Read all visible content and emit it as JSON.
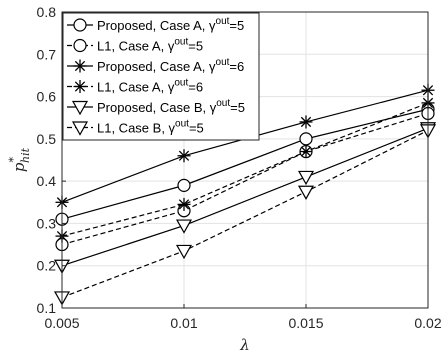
{
  "chart_data": {
    "type": "line",
    "title": "",
    "xlabel": "λ",
    "ylabel": {
      "base": "p",
      "sup": "*",
      "sub": "hit"
    },
    "x": [
      0.005,
      0.01,
      0.015,
      0.02
    ],
    "xticks": [
      "0.005",
      "0.01",
      "0.015",
      "0.02"
    ],
    "yticks": [
      "0.1",
      "0.2",
      "0.3",
      "0.4",
      "0.5",
      "0.6",
      "0.7",
      "0.8"
    ],
    "xlim": [
      0.005,
      0.02
    ],
    "ylim": [
      0.1,
      0.8
    ],
    "grid": true,
    "legend_position": "top-left",
    "series": [
      {
        "name": "Proposed, Case A, γ^out=5",
        "legend_prefix": "Proposed, Case A, γ",
        "legend_sup": "out",
        "legend_suffix": "=5",
        "marker": "circle",
        "line": "solid",
        "values": [
          0.31,
          0.39,
          0.5,
          0.57
        ]
      },
      {
        "name": "L1, Case A, γ^out=5",
        "legend_prefix": "L1, Case A, γ",
        "legend_sup": "out",
        "legend_suffix": "=5",
        "marker": "circle",
        "line": "dashed",
        "values": [
          0.25,
          0.33,
          0.47,
          0.56
        ]
      },
      {
        "name": "Proposed, Case A, γ^out=6",
        "legend_prefix": "Proposed, Case A, γ",
        "legend_sup": "out",
        "legend_suffix": "=6",
        "marker": "star",
        "line": "solid",
        "values": [
          0.35,
          0.46,
          0.54,
          0.615
        ]
      },
      {
        "name": "L1, Case A, γ^out=6",
        "legend_prefix": "L1, Case A, γ",
        "legend_sup": "out",
        "legend_suffix": "=6",
        "marker": "star",
        "line": "dashed",
        "values": [
          0.27,
          0.345,
          0.47,
          0.585
        ]
      },
      {
        "name": "Proposed, Case B, γ^out=5",
        "legend_prefix": "Proposed, Case B, γ",
        "legend_sup": "out",
        "legend_suffix": "=5",
        "marker": "triangle-down",
        "line": "solid",
        "values": [
          0.2,
          0.295,
          0.41,
          0.525
        ]
      },
      {
        "name": "L1, Case B, γ^out=5",
        "legend_prefix": "L1, Case B, γ",
        "legend_sup": "out",
        "legend_suffix": "=5",
        "marker": "triangle-down",
        "line": "dashed",
        "values": [
          0.125,
          0.235,
          0.375,
          0.52
        ]
      }
    ]
  }
}
